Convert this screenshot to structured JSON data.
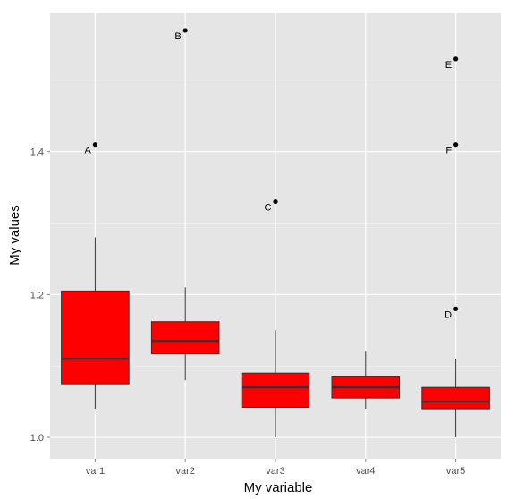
{
  "chart_data": {
    "type": "box",
    "xlabel": "My variable",
    "ylabel": "My values",
    "ylim": [
      0.97,
      1.595
    ],
    "yticks": [
      1.0,
      1.2,
      1.4
    ],
    "ytick_labels": [
      "1.0",
      "1.2",
      "1.4"
    ],
    "grid": true,
    "legend": "none",
    "colors": {
      "panel_bg": "#e5e5e5",
      "grid_major": "#ffffff",
      "grid_minor": "#f2f2f2",
      "box_fill": "#ff0000",
      "box_line": "#333333",
      "point": "#000000"
    },
    "categories": [
      "var1",
      "var2",
      "var3",
      "var4",
      "var5"
    ],
    "boxes": [
      {
        "category": "var1",
        "lower_whisker": 1.04,
        "q1": 1.075,
        "median": 1.11,
        "q3": 1.205,
        "upper_whisker": 1.28
      },
      {
        "category": "var2",
        "lower_whisker": 1.08,
        "q1": 1.117,
        "median": 1.135,
        "q3": 1.162,
        "upper_whisker": 1.21
      },
      {
        "category": "var3",
        "lower_whisker": 1.0,
        "q1": 1.042,
        "median": 1.07,
        "q3": 1.09,
        "upper_whisker": 1.15
      },
      {
        "category": "var4",
        "lower_whisker": 1.04,
        "q1": 1.055,
        "median": 1.07,
        "q3": 1.085,
        "upper_whisker": 1.12
      },
      {
        "category": "var5",
        "lower_whisker": 1.0,
        "q1": 1.04,
        "median": 1.05,
        "q3": 1.07,
        "upper_whisker": 1.11
      }
    ],
    "outliers": [
      {
        "category": "var1",
        "y": 1.41,
        "label": "A"
      },
      {
        "category": "var2",
        "y": 1.57,
        "label": "B"
      },
      {
        "category": "var3",
        "y": 1.33,
        "label": "C"
      },
      {
        "category": "var5",
        "y": 1.53,
        "label": "E"
      },
      {
        "category": "var5",
        "y": 1.41,
        "label": "F"
      },
      {
        "category": "var5",
        "y": 1.18,
        "label": "D"
      }
    ]
  }
}
